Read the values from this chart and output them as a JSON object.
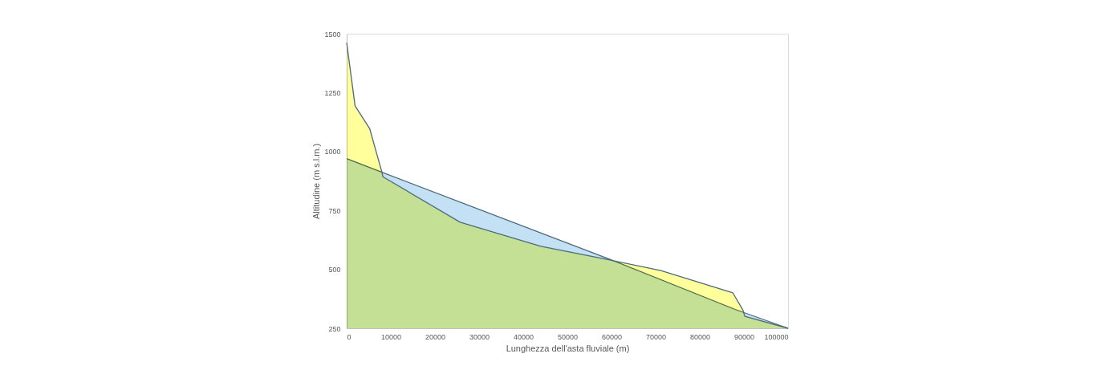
{
  "chart_data": {
    "type": "area",
    "xlabel": "Lunghezza dell'asta fluviale (m)",
    "ylabel": "Altitudine (m s.l.m.)",
    "series": [
      {
        "color": "#c4e0f4",
        "x": [
          0,
          8000,
          60000,
          88000,
          100000
        ],
        "values": [
          970,
          912,
          540,
          330,
          250
        ]
      },
      {
        "color": "#ffff9c",
        "x": [
          0,
          1900,
          5200,
          8000,
          8200,
          25700,
          44000,
          59600,
          71200,
          87500,
          89800,
          90200,
          100000
        ],
        "values": [
          1462,
          1194,
          1098,
          911,
          893,
          700,
          598,
          540,
          495,
          400,
          326,
          301,
          250
        ]
      }
    ],
    "xlim": [
      0,
      100000
    ],
    "xticks": [
      0,
      10000,
      20000,
      30000,
      40000,
      50000,
      60000,
      70000,
      80000,
      90000,
      100000
    ],
    "ylim": [
      250,
      1500
    ],
    "yticks": [
      250,
      500,
      750,
      1000,
      1250,
      1500
    ],
    "grid": false
  }
}
